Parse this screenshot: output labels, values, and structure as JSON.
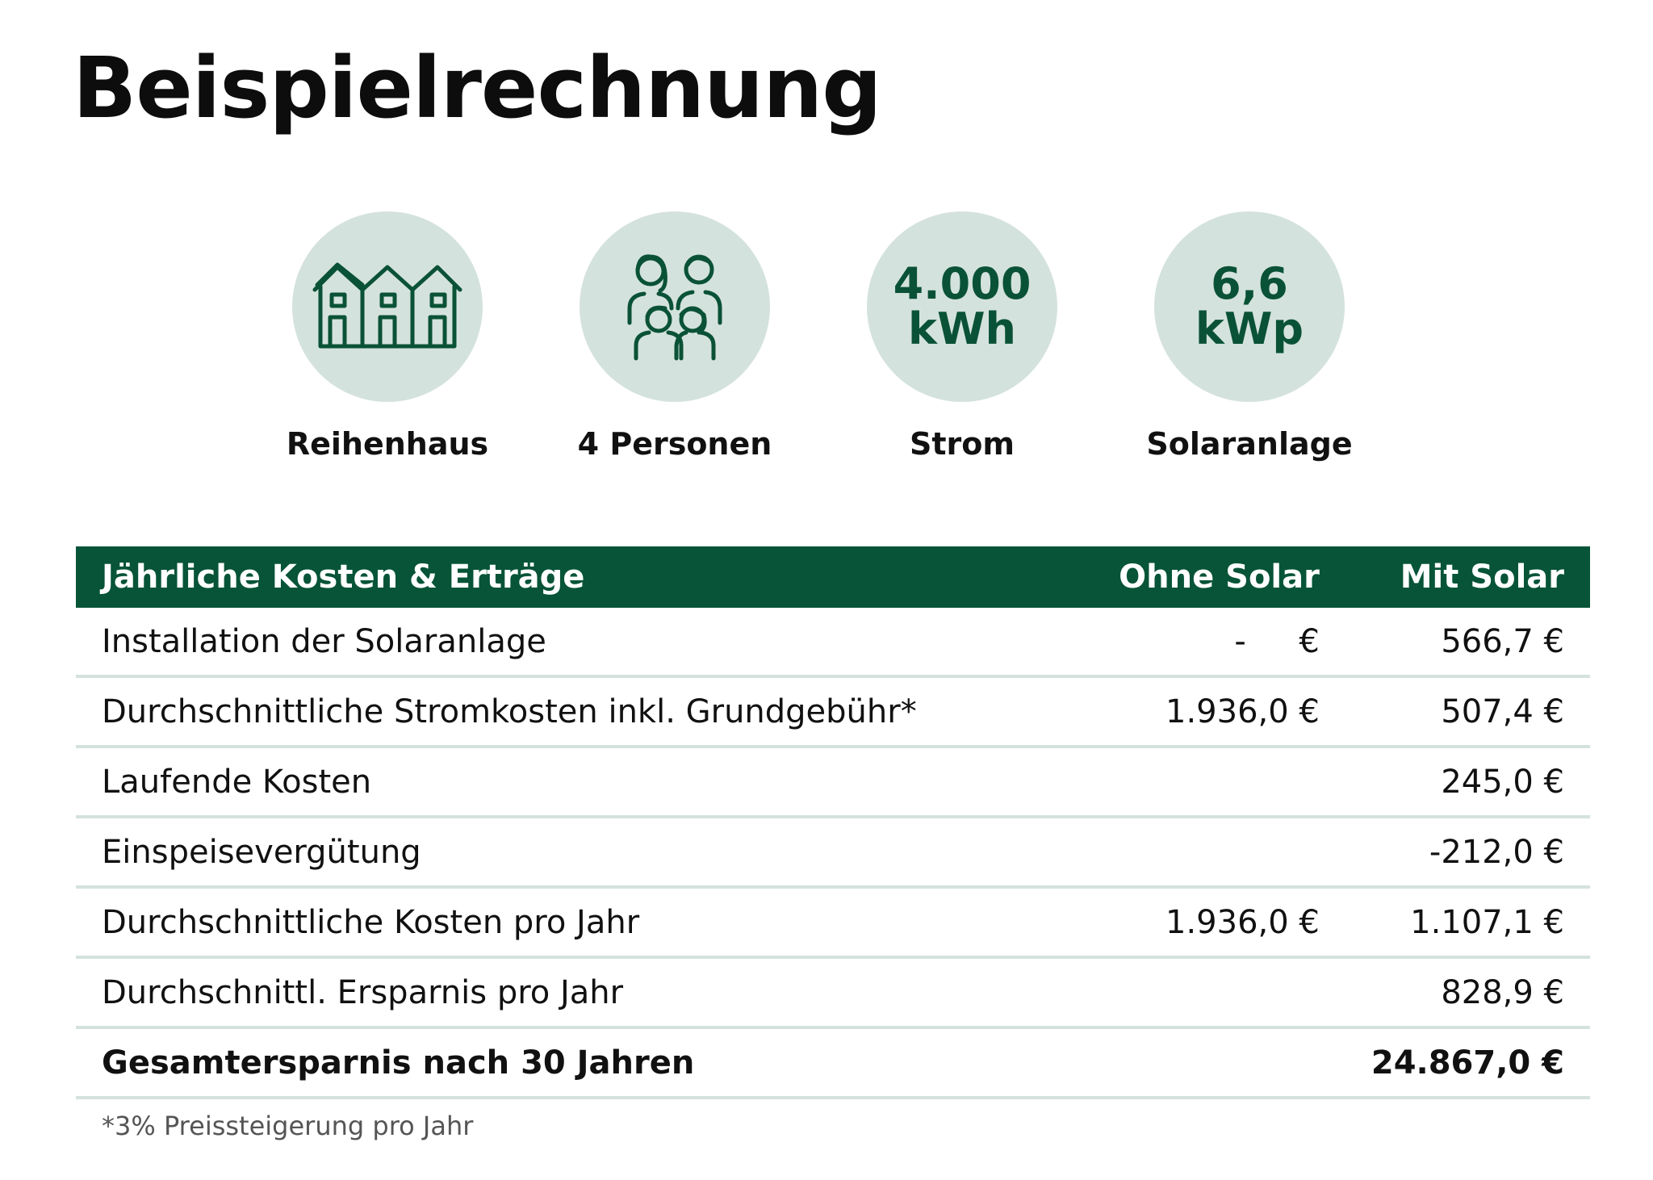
{
  "title": "Beispielrechnung",
  "badges": [
    {
      "icon": "row-houses-icon",
      "label": "Reihenhaus"
    },
    {
      "icon": "family-icon",
      "label": "4 Personen"
    },
    {
      "value_line1": "4.000",
      "value_line2": "kWh",
      "label": "Strom"
    },
    {
      "value_line1": "6,6",
      "value_line2": "kWp",
      "label": "Solaranlage"
    }
  ],
  "colors": {
    "dark_green": "#075438",
    "light_green": "#d4e2dd",
    "accent_text": "#0a5237"
  },
  "table": {
    "headers": [
      "Jährliche Kosten & Erträge",
      "Ohne Solar",
      "Mit Solar"
    ],
    "rows": [
      {
        "label": "Installation der Solaranlage",
        "ohne_dash": "-",
        "ohne": "€",
        "mit": "566,7 €"
      },
      {
        "label": "Durchschnittliche Stromkosten inkl. Grundgebühr*",
        "ohne_dash": "",
        "ohne": "1.936,0 €",
        "mit": "507,4 €"
      },
      {
        "label": "Laufende Kosten",
        "ohne_dash": "",
        "ohne": "",
        "mit": "245,0 €"
      },
      {
        "label": "Einspeisevergütung",
        "ohne_dash": "",
        "ohne": "",
        "mit": "-212,0 €"
      },
      {
        "label": "Durchschnittliche Kosten pro Jahr",
        "ohne_dash": "",
        "ohne": "1.936,0 €",
        "mit": "1.107,1 €"
      },
      {
        "label": "Durchschnittl. Ersparnis pro Jahr",
        "ohne_dash": "",
        "ohne": "",
        "mit": "828,9 €"
      }
    ],
    "total": {
      "label": "Gesamtersparnis nach 30 Jahren",
      "ohne": "",
      "mit": "24.867,0 €"
    }
  },
  "footnote": "*3% Preissteigerung pro Jahr"
}
